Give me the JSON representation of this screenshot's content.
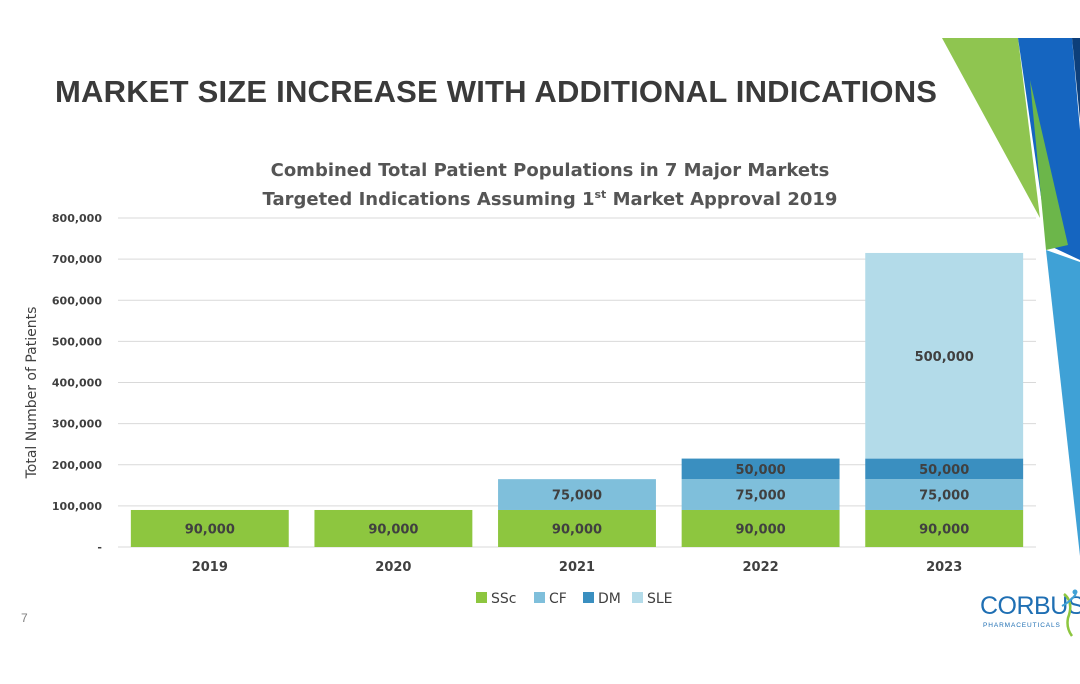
{
  "slide": {
    "title": "MARKET SIZE INCREASE WITH ADDITIONAL INDICATIONS",
    "page_number": "7"
  },
  "logo": {
    "name": "CORBUS",
    "subtitle": "PHARMACEUTICALS"
  },
  "chart_data": {
    "type": "bar",
    "stacked": true,
    "title_line1": "Combined Total Patient Populations in 7 Major Markets",
    "title_line2_pre": "Targeted Indications Assuming 1",
    "title_line2_sup": "st",
    "title_line2_post": " Market Approval 2019",
    "ylabel": "Total Number of Patients",
    "xlabel": "",
    "ylim": [
      0,
      800000
    ],
    "y_ticks": [
      0,
      100000,
      200000,
      300000,
      400000,
      500000,
      600000,
      700000,
      800000
    ],
    "y_tick_labels": [
      "-",
      "100,000",
      "200,000",
      "300,000",
      "400,000",
      "500,000",
      "600,000",
      "700,000",
      "800,000"
    ],
    "categories": [
      "2019",
      "2020",
      "2021",
      "2022",
      "2023"
    ],
    "series": [
      {
        "name": "SSc",
        "color": "#8dc63f",
        "values": [
          90000,
          90000,
          90000,
          90000,
          90000
        ],
        "labels": [
          "90,000",
          "90,000",
          "90,000",
          "90,000",
          "90,000"
        ]
      },
      {
        "name": "CF",
        "color": "#7fbfdb",
        "values": [
          0,
          0,
          75000,
          75000,
          75000
        ],
        "labels": [
          "",
          "",
          "75,000",
          "75,000",
          "75,000"
        ]
      },
      {
        "name": "DM",
        "color": "#3a8fc0",
        "values": [
          0,
          0,
          0,
          50000,
          50000
        ],
        "labels": [
          "",
          "",
          "",
          "50,000",
          "50,000"
        ]
      },
      {
        "name": "SLE",
        "color": "#b3dbe9",
        "values": [
          0,
          0,
          0,
          0,
          500000
        ],
        "labels": [
          "",
          "",
          "",
          "",
          "500,000"
        ]
      }
    ],
    "grid": true,
    "legend_position": "bottom"
  }
}
